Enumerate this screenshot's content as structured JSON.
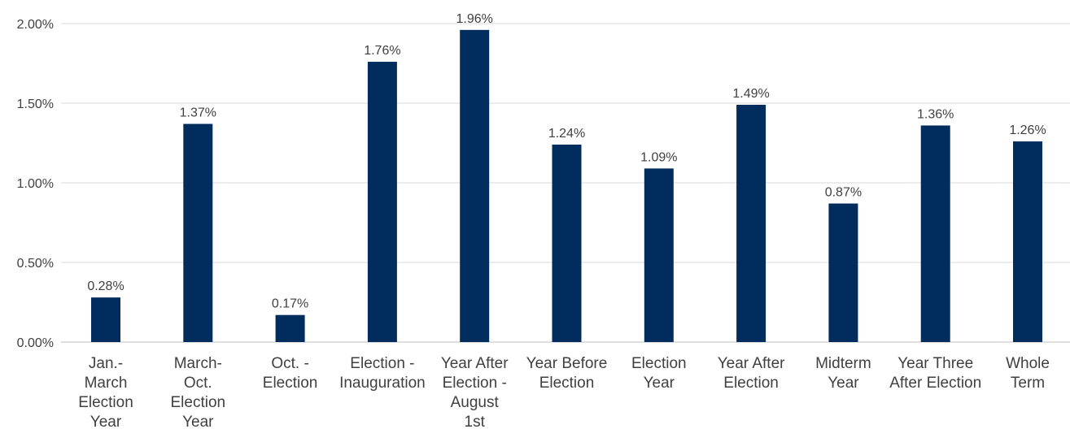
{
  "chart_data": {
    "type": "bar",
    "categories": [
      [
        "Jan.-",
        "March",
        "Election",
        "Year"
      ],
      [
        "March-",
        "Oct.",
        "Election",
        "Year"
      ],
      [
        "Oct. -",
        "Election"
      ],
      [
        "Election -",
        "Inauguration"
      ],
      [
        "Year After",
        "Election -",
        "August",
        "1st"
      ],
      [
        "Year Before",
        "Election"
      ],
      [
        "Election",
        "Year"
      ],
      [
        "Year After",
        "Election"
      ],
      [
        "Midterm",
        "Year"
      ],
      [
        "Year Three",
        "After Election"
      ],
      [
        "Whole",
        "Term"
      ]
    ],
    "values": [
      0.28,
      1.37,
      0.17,
      1.76,
      1.96,
      1.24,
      1.09,
      1.49,
      0.87,
      1.36,
      1.26
    ],
    "data_labels": [
      "0.28%",
      "1.37%",
      "0.17%",
      "1.76%",
      "1.96%",
      "1.24%",
      "1.09%",
      "1.49%",
      "0.87%",
      "1.36%",
      "1.26%"
    ],
    "ylim": [
      0,
      2.0
    ],
    "yticks": [
      0,
      0.5,
      1.0,
      1.5,
      2.0
    ],
    "ytick_labels": [
      "0.00%",
      "0.50%",
      "1.00%",
      "1.50%",
      "2.00%"
    ],
    "grid": true,
    "bar_color": "#002D5E",
    "grid_color": "#D9D9D9",
    "text_color": "#404040",
    "title": "",
    "xlabel": "",
    "ylabel": ""
  }
}
